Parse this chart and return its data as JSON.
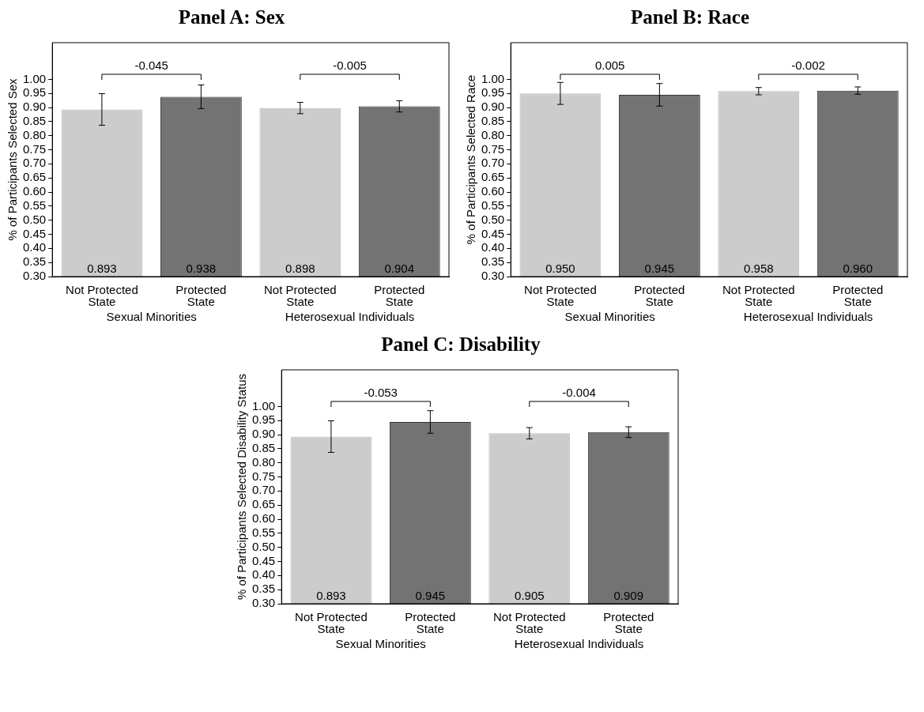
{
  "chart_data": [
    {
      "type": "bar",
      "title": "Panel A: Sex",
      "ylabel": "% of Participants Selected Sex",
      "categories": [
        "Not Protected State",
        "Protected State",
        "Not Protected State",
        "Protected State"
      ],
      "values": [
        0.893,
        0.938,
        0.898,
        0.904
      ],
      "value_labels": [
        "0.893",
        "0.938",
        "0.898",
        "0.904"
      ],
      "errors": [
        0.056,
        0.042,
        0.02,
        0.02
      ],
      "colors": [
        "#cccccc",
        "#737373",
        "#cccccc",
        "#737373"
      ],
      "ylim": [
        0.3,
        1.13
      ],
      "yticks": [
        {
          "value": 0.3,
          "label": "0.30"
        },
        0.35,
        {
          "value": 0.4,
          "label": "0.40"
        },
        0.45,
        {
          "value": 0.5,
          "label": "0.50"
        },
        0.55,
        {
          "value": 0.6,
          "label": "0.60"
        },
        0.65,
        {
          "value": 0.7,
          "label": "0.70"
        },
        0.75,
        {
          "value": 0.8,
          "label": "0.80"
        },
        0.85,
        {
          "value": 0.9,
          "label": "0.90"
        },
        0.95,
        {
          "value": 1.0,
          "label": "1.00"
        }
      ],
      "grid": false,
      "legend": false,
      "annotations": [
        "-0.045",
        "-0.005",
        "Sexual Minorities",
        "Heterosexual Individuals"
      ]
    },
    {
      "type": "bar",
      "title": "Panel B: Race",
      "ylabel": "% of Participants Selected Race",
      "categories": [
        "Not Protected State",
        "Protected State",
        "Not Protected State",
        "Protected State"
      ],
      "values": [
        0.95,
        0.945,
        0.958,
        0.96
      ],
      "value_labels": [
        "0.950",
        "0.945",
        "0.958",
        "0.960"
      ],
      "errors": [
        0.039,
        0.04,
        0.013,
        0.013
      ],
      "colors": [
        "#cccccc",
        "#737373",
        "#cccccc",
        "#737373"
      ],
      "ylim": [
        0.3,
        1.13
      ],
      "yticks": [
        {
          "value": 0.3,
          "label": "0.30"
        },
        0.35,
        {
          "value": 0.4,
          "label": "0.40"
        },
        0.45,
        {
          "value": 0.5,
          "label": "0.50"
        },
        0.55,
        {
          "value": 0.6,
          "label": "0.60"
        },
        0.65,
        {
          "value": 0.7,
          "label": "0.70"
        },
        0.75,
        {
          "value": 0.8,
          "label": "0.80"
        },
        0.85,
        {
          "value": 0.9,
          "label": "0.90"
        },
        0.95,
        {
          "value": 1.0,
          "label": "1.00"
        }
      ],
      "grid": false,
      "legend": false,
      "annotations": [
        "0.005",
        "-0.002",
        "Sexual Minorities",
        "Heterosexual Individuals"
      ]
    },
    {
      "type": "bar",
      "title": "Panel C: Disability",
      "ylabel": "% of Participants Selected Disability Status",
      "categories": [
        "Not Protected State",
        "Protected State",
        "Not Protected State",
        "Protected State"
      ],
      "values": [
        0.893,
        0.945,
        0.905,
        0.909
      ],
      "value_labels": [
        "0.893",
        "0.945",
        "0.905",
        "0.909"
      ],
      "errors": [
        0.056,
        0.04,
        0.02,
        0.019
      ],
      "colors": [
        "#cccccc",
        "#737373",
        "#cccccc",
        "#737373"
      ],
      "ylim": [
        0.3,
        1.13
      ],
      "yticks": [
        {
          "value": 0.3,
          "label": "0.30"
        },
        0.35,
        {
          "value": 0.4,
          "label": "0.40"
        },
        0.45,
        {
          "value": 0.5,
          "label": "0.50"
        },
        0.55,
        {
          "value": 0.6,
          "label": "0.60"
        },
        0.65,
        {
          "value": 0.7,
          "label": "0.70"
        },
        0.75,
        {
          "value": 0.8,
          "label": "0.80"
        },
        0.85,
        {
          "value": 0.9,
          "label": "0.90"
        },
        0.95,
        {
          "value": 1.0,
          "label": "1.00"
        }
      ],
      "grid": false,
      "legend": false,
      "annotations": [
        "-0.053",
        "-0.004",
        "Sexual Minorities",
        "Heterosexual Individuals"
      ]
    }
  ]
}
